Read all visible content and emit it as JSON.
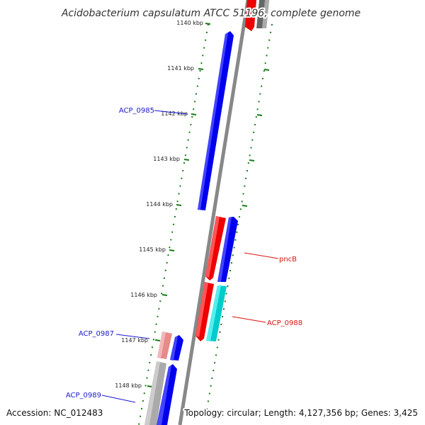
{
  "title": "Acidobacterium capsulatum ATCC 51196, complete genome",
  "accession": "Accession: NC_012483",
  "summary": "Topology: circular; Length: 4,127,356 bp; Genes: 3,425",
  "ticks": [
    "1140 kbp",
    "1141 kbp",
    "1142 kbp",
    "1143 kbp",
    "1144 kbp",
    "1145 kbp",
    "1146 kbp",
    "1147 kbp",
    "1148 kbp"
  ],
  "labels": {
    "acp0985": "ACP_0985",
    "pncb": "pncB",
    "acp0988": "ACP_0988",
    "acp0987": "ACP_0987",
    "acp0989": "ACP_0989"
  },
  "colors": {
    "forward_cds": "#0000ee",
    "reverse_cds": "#ee0000",
    "rna": "#00cccc",
    "pseudo": "#e88a8a",
    "other": "#aaaaaa",
    "backbone": "#888888",
    "tick_green": "#1a7a1a",
    "label_blue": "#1a1acc",
    "label_red": "#dd1111"
  }
}
